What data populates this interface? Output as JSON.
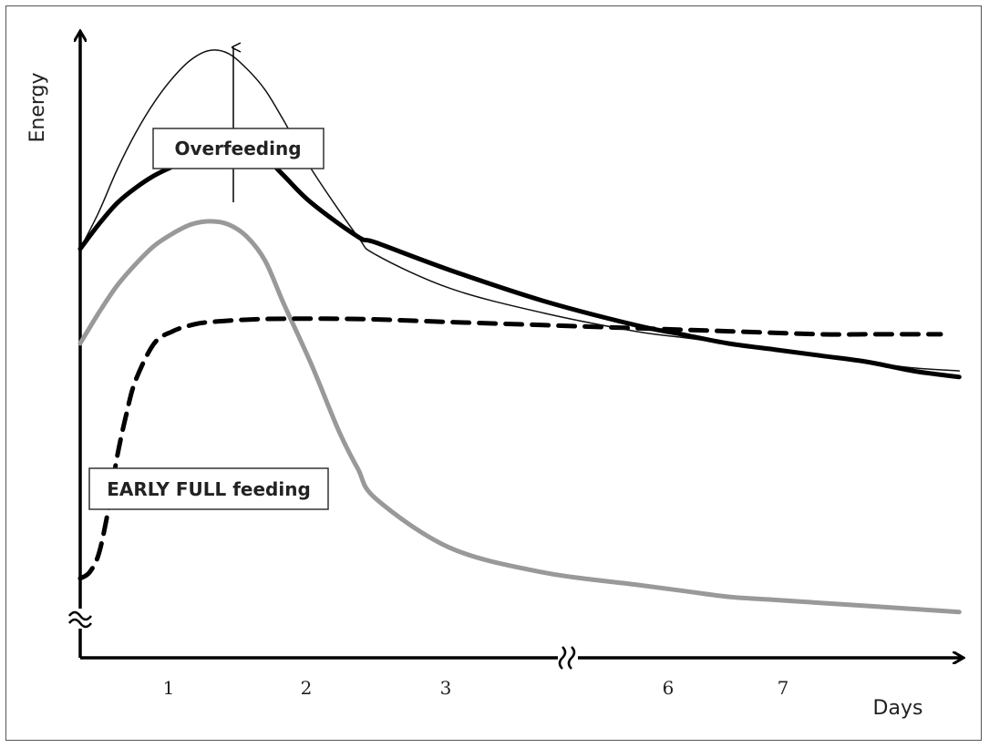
{
  "chart_data": {
    "type": "line",
    "title": "",
    "xlabel": "Days",
    "ylabel": "Energy",
    "x_ticks": [
      "1",
      "2",
      "3",
      "6",
      "7"
    ],
    "annotations": [
      "Overfeeding",
      "EARLY FULL feeding"
    ],
    "axis_breaks": [
      "y",
      "x"
    ],
    "series": [
      {
        "style": "thin-black",
        "color": "#111111",
        "x": [
          0,
          0.2,
          0.4,
          0.6,
          0.8,
          1.0,
          1.2,
          1.4,
          1.6,
          1.8,
          2.0,
          2.2,
          2.5,
          3.0,
          3.2,
          4.0,
          5.0,
          6.0,
          6.5,
          7.0,
          7.5,
          8.0,
          8.5,
          9.0,
          9.5
        ],
        "y": [
          67,
          73,
          80,
          86,
          91,
          95,
          98,
          99.5,
          99,
          96.5,
          93,
          88,
          80,
          69,
          66,
          60.5,
          56.5,
          53.5,
          52.5,
          51.5,
          50.5,
          49.5,
          48.5,
          47.5,
          47
        ]
      },
      {
        "style": "thick-black",
        "color": "#000000",
        "x": [
          0,
          0.2,
          0.4,
          0.6,
          0.8,
          1.0,
          1.2,
          1.4,
          1.6,
          1.8,
          2.0,
          2.2,
          2.5,
          3.0,
          3.2,
          4.0,
          5.0,
          6.0,
          6.5,
          7.0,
          7.5,
          8.0,
          8.5,
          9.0,
          9.5
        ],
        "y": [
          67,
          71,
          74.5,
          77,
          79,
          80.5,
          82,
          83,
          83.5,
          83.5,
          82,
          79,
          74.5,
          69,
          68,
          63.5,
          58.5,
          54.5,
          53,
          51.5,
          50.5,
          49.5,
          48.5,
          47,
          46
        ]
      },
      {
        "style": "gray",
        "color": "#999999",
        "x": [
          0,
          0.2,
          0.4,
          0.6,
          0.8,
          1.0,
          1.2,
          1.4,
          1.6,
          1.8,
          2.0,
          2.2,
          2.5,
          2.8,
          3.0,
          3.2,
          4.0,
          5.0,
          6.0,
          6.5,
          7.0,
          7.5,
          8.0,
          8.5,
          9.0,
          9.5
        ],
        "y": [
          51.5,
          56.5,
          61,
          64.5,
          67.5,
          69.5,
          71,
          71.5,
          71,
          69,
          65,
          58,
          48,
          37,
          31,
          26,
          18,
          14,
          12,
          11,
          10,
          9.5,
          9,
          8.5,
          8,
          7.5
        ]
      },
      {
        "style": "dashed-black",
        "color": "#000000",
        "x": [
          0,
          0.1,
          0.2,
          0.3,
          0.4,
          0.5,
          0.6,
          0.8,
          1.0,
          1.2,
          1.4,
          2.0,
          3.0,
          4.0,
          5.0,
          6.0,
          7.0,
          8.0,
          8.5,
          9.0,
          9.3
        ],
        "y": [
          13,
          14,
          17,
          24,
          33,
          40,
          45.5,
          51.5,
          53.5,
          54.5,
          55,
          55.5,
          55.5,
          55,
          54.5,
          54,
          53.5,
          53,
          53,
          53,
          53
        ]
      }
    ]
  }
}
